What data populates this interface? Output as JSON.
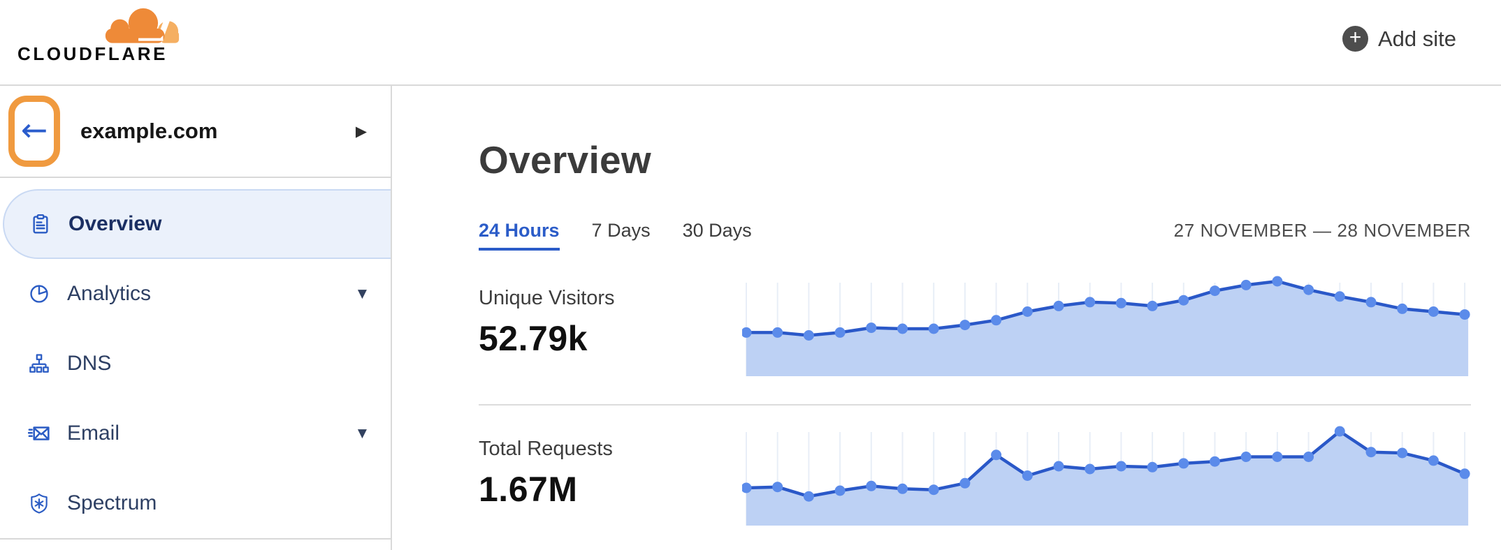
{
  "header": {
    "logo_text": "CLOUDFLARE",
    "add_site_label": "Add site"
  },
  "sidebar": {
    "zone": "example.com",
    "items": [
      {
        "label": "Overview",
        "icon": "clipboard-icon",
        "selected": true,
        "expandable": false
      },
      {
        "label": "Analytics",
        "icon": "pie-chart-icon",
        "selected": false,
        "expandable": true
      },
      {
        "label": "DNS",
        "icon": "dns-tree-icon",
        "selected": false,
        "expandable": false
      },
      {
        "label": "Email",
        "icon": "email-icon",
        "selected": false,
        "expandable": true
      },
      {
        "label": "Spectrum",
        "icon": "shield-icon",
        "selected": false,
        "expandable": false
      }
    ]
  },
  "main": {
    "title": "Overview",
    "tabs": [
      {
        "label": "24 Hours",
        "active": true
      },
      {
        "label": "7 Days",
        "active": false
      },
      {
        "label": "30 Days",
        "active": false
      }
    ],
    "date_range": "27 NOVEMBER — 28 NOVEMBER",
    "stats": [
      {
        "label": "Unique Visitors",
        "value": "52.79k"
      },
      {
        "label": "Total Requests",
        "value": "1.67M"
      }
    ]
  },
  "colors": {
    "brand_orange": "#EE8A38",
    "brand_orange_light": "#F5AF62",
    "annotation_orange": "#F09A3F",
    "link_blue": "#2B5CC8",
    "selected_bg": "#EBF1FB",
    "chart_line": "#2A58C8",
    "chart_dot": "#5B8BEA",
    "chart_fill": "#BDD1F4",
    "chart_grid": "#E8EEF7"
  },
  "chart_data": [
    {
      "type": "area",
      "title": "Unique Visitors",
      "total_shown": "52.79k",
      "x": "24 hourly points, no axis labels shown",
      "values_relative": [
        0.46,
        0.46,
        0.43,
        0.46,
        0.51,
        0.5,
        0.5,
        0.54,
        0.59,
        0.68,
        0.74,
        0.78,
        0.77,
        0.74,
        0.8,
        0.9,
        0.96,
        1.0,
        0.91,
        0.84,
        0.78,
        0.71,
        0.68,
        0.65
      ]
    },
    {
      "type": "area",
      "title": "Total Requests",
      "total_shown": "1.67M",
      "x": "24 hourly points, no axis labels shown",
      "values_relative": [
        0.4,
        0.41,
        0.31,
        0.37,
        0.42,
        0.39,
        0.38,
        0.45,
        0.75,
        0.53,
        0.63,
        0.6,
        0.63,
        0.62,
        0.66,
        0.68,
        0.73,
        0.73,
        0.73,
        1.0,
        0.78,
        0.77,
        0.69,
        0.55
      ]
    }
  ]
}
